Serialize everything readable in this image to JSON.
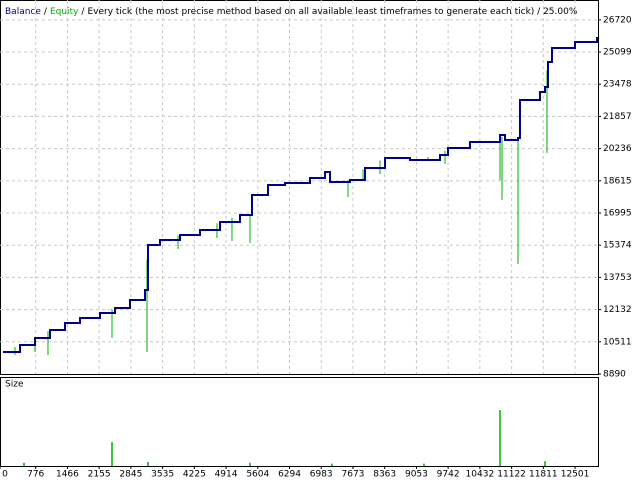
{
  "chart_data": {
    "type": "line",
    "legend_separator": "/",
    "subtitle": "Every tick (the most precise method based on all available least timeframes to generate each tick) / 25.00%",
    "xlim": [
      0,
      13000
    ],
    "xticks": [
      0,
      776,
      1466,
      2155,
      2845,
      3535,
      4225,
      4914,
      5604,
      6294,
      6983,
      7673,
      8363,
      9053,
      9742,
      10432,
      11122,
      11811,
      12501
    ],
    "ylim": [
      8890,
      27718
    ],
    "yticks": [
      8890,
      10511,
      12132,
      13753,
      15374,
      16995,
      18615,
      20236,
      21857,
      23478,
      25099,
      26720
    ],
    "grid": true,
    "series": [
      {
        "name": "Balance",
        "color": "#00008b",
        "x": [
          65,
          435,
          761,
          1087,
          1413,
          1739,
          2174,
          2500,
          2826,
          3152,
          3217,
          3478,
          3913,
          4348,
          4783,
          5217,
          5435,
          5478,
          5826,
          6196,
          6739,
          7065,
          7174,
          7609,
          7935,
          8370,
          8913,
          9565,
          9739,
          10217,
          10870,
          10978,
          11261,
          11304,
          11739,
          11848,
          11913,
          12000,
          12500,
          12978
        ],
        "values": [
          9998,
          10350,
          10700,
          11105,
          11457,
          11710,
          11960,
          12212,
          12615,
          13118,
          15384,
          15635,
          15887,
          16139,
          16542,
          16894,
          16894,
          17901,
          18405,
          18505,
          18757,
          19059,
          18555,
          18656,
          19260,
          19764,
          19663,
          19915,
          20267,
          20569,
          20921,
          20670,
          20770,
          22683,
          23086,
          23337,
          24596,
          25300,
          25602,
          25854
        ]
      },
      {
        "name": "Equity",
        "color": "#00b000",
        "x": [
          326,
          761,
          1043,
          2435,
          3196,
          3870,
          4717,
          5043,
          5435,
          7565,
          7891,
          8261,
          9304,
          9674,
          10870,
          10913,
          11261,
          11891
        ],
        "values": [
          9845,
          10000,
          9845,
          10700,
          10000,
          15182,
          15736,
          15585,
          15485,
          17800,
          18706,
          18957,
          19614,
          19460,
          18650,
          17650,
          14424,
          20015
        ]
      }
    ],
    "size_panel": {
      "label": "Size",
      "color": "#00b000",
      "ylim": [
        0,
        1.1
      ],
      "x": [
        522,
        2435,
        3217,
        5435,
        7217,
        9217,
        10870,
        11848
      ],
      "values": [
        0.04,
        0.3,
        0.05,
        0.04,
        0.03,
        0.03,
        0.7,
        0.06
      ]
    }
  }
}
